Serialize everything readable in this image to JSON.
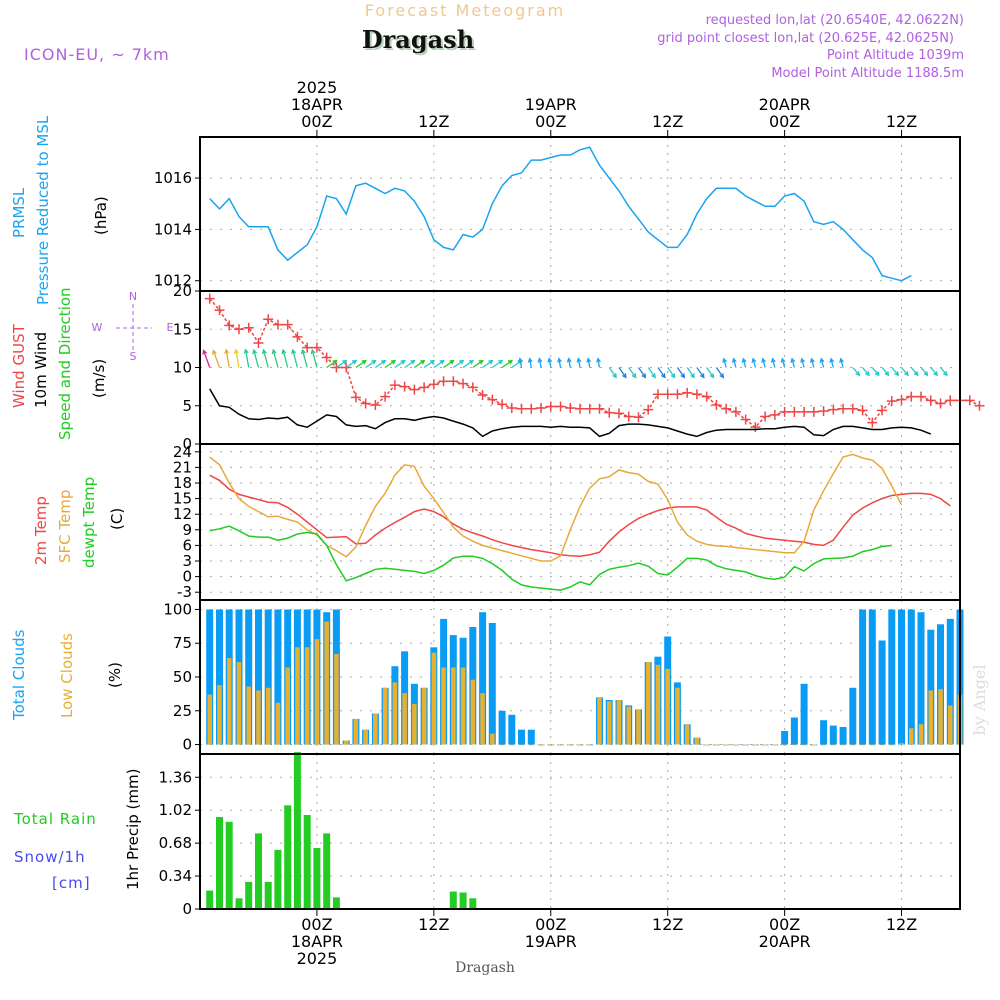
{
  "header": {
    "subtitle": "Forecast Meteogram",
    "location": "Dragash",
    "model": "ICON-EU, ~ 7km",
    "requested": "requested lon,lat (20.6540E, 42.0622N)",
    "grid_point": "grid point closest lon,lat (20.625E, 42.0625N)",
    "point_altitude": "Point Altitude 1039m",
    "model_altitude": "Model Point Altitude 1188.5m",
    "footer_location": "Dragash",
    "watermark": "by Angel"
  },
  "colors": {
    "pressure": "#1aa3f0",
    "gust": "#f04646",
    "wind": "#000000",
    "temp2m": "#f04646",
    "sfc_temp": "#e8a93a",
    "dewpoint": "#22cc22",
    "total_clouds": "#0a9cf5",
    "low_clouds": "#e8b030",
    "rain": "#22cc22",
    "snow": "#4a4af0",
    "label_purple": "#b060e0",
    "subtitle": "#f0c890"
  },
  "chart_data": {
    "type": "meteogram",
    "time_axis": {
      "unit": "hours from 2025-04-18 00Z",
      "range": [
        -12,
        66
      ],
      "top_ticks": [
        {
          "h": 0,
          "lines": [
            "2025",
            "18APR",
            "00Z"
          ]
        },
        {
          "h": 12,
          "lines": [
            "12Z"
          ]
        },
        {
          "h": 24,
          "lines": [
            "19APR",
            "00Z"
          ]
        },
        {
          "h": 36,
          "lines": [
            "12Z"
          ]
        },
        {
          "h": 48,
          "lines": [
            "20APR",
            "00Z"
          ]
        },
        {
          "h": 60,
          "lines": [
            "12Z"
          ]
        }
      ],
      "bottom_ticks": [
        {
          "h": 0,
          "lines": [
            "00Z",
            "18APR",
            "2025"
          ]
        },
        {
          "h": 12,
          "lines": [
            "12Z"
          ]
        },
        {
          "h": 24,
          "lines": [
            "00Z",
            "19APR"
          ]
        },
        {
          "h": 36,
          "lines": [
            "12Z"
          ]
        },
        {
          "h": 48,
          "lines": [
            "00Z",
            "20APR"
          ]
        },
        {
          "h": 60,
          "lines": [
            "12Z"
          ]
        }
      ],
      "hours_start": -11
    },
    "panels": [
      {
        "id": "pressure",
        "type": "line",
        "labels": [
          "PRMSL",
          "Pressure Reduced to MSL",
          "(hPa)"
        ],
        "ylim": [
          1011.6,
          1017.6
        ],
        "yticks": [
          1012,
          1014,
          1016
        ],
        "series": [
          {
            "name": "PRMSL",
            "color_key": "pressure",
            "values": [
              1015.2,
              1014.8,
              1015.2,
              1014.5,
              1014.1,
              1014.1,
              1014.1,
              1013.2,
              1012.8,
              1013.1,
              1013.4,
              1014.1,
              1015.3,
              1015.2,
              1014.6,
              1015.7,
              1015.8,
              1015.6,
              1015.4,
              1015.6,
              1015.5,
              1015.1,
              1014.5,
              1013.6,
              1013.3,
              1013.2,
              1013.8,
              1013.7,
              1014.0,
              1015.0,
              1015.7,
              1016.1,
              1016.2,
              1016.7,
              1016.7,
              1016.8,
              1016.9,
              1016.9,
              1017.1,
              1017.2,
              1016.5,
              1016.0,
              1015.5,
              1014.9,
              1014.4,
              1013.9,
              1013.6,
              1013.3,
              1013.3,
              1013.8,
              1014.6,
              1015.2,
              1015.6,
              1015.6,
              1015.6,
              1015.3,
              1015.1,
              1014.9,
              1014.9,
              1015.3,
              1015.4,
              1015.1,
              1014.3,
              1014.2,
              1014.3,
              1014.0,
              1013.6,
              1013.2,
              1012.9,
              1012.2,
              1012.1,
              1012.0,
              1012.2
            ]
          }
        ]
      },
      {
        "id": "wind",
        "type": "line",
        "labels": [
          "Wind GUST",
          "10m Wind",
          "Speed and Direction",
          "(m/s)"
        ],
        "compass": {
          "N": "N",
          "S": "S",
          "E": "E",
          "W": "W"
        },
        "ylim": [
          0,
          20
        ],
        "yticks": [
          0,
          5,
          10,
          15,
          20
        ],
        "series": [
          {
            "name": "Wind GUST",
            "color_key": "gust",
            "marker": "+",
            "values": [
              19,
              17.5,
              15.5,
              15,
              15.2,
              13.2,
              16.3,
              15.6,
              15.6,
              14,
              12.6,
              12.6,
              11.3,
              10,
              10,
              6.1,
              5.3,
              5.1,
              6.2,
              7.7,
              7.5,
              7.1,
              7.4,
              7.8,
              8.2,
              8.2,
              7.9,
              7.4,
              6.4,
              5.8,
              5.2,
              4.7,
              4.6,
              4.6,
              4.7,
              4.9,
              4.9,
              4.7,
              4.6,
              4.6,
              4.6,
              4.1,
              4.0,
              3.6,
              3.5,
              4.5,
              6.5,
              6.5,
              6.5,
              6.7,
              6.5,
              6.2,
              5.1,
              4.6,
              4.2,
              3.2,
              2.2,
              3.6,
              3.8,
              4.2,
              4.2,
              4.2,
              4.2,
              4.3,
              4.5,
              4.6,
              4.6,
              4.4,
              2.8,
              4.4,
              5.6,
              5.8,
              6.2,
              6.2,
              5.7,
              5.3,
              5.7,
              5.7,
              5.7,
              5.0
            ]
          },
          {
            "name": "10m Wind",
            "color_key": "wind",
            "values": [
              7.2,
              5.0,
              4.8,
              3.9,
              3.3,
              3.2,
              3.4,
              3.3,
              3.5,
              2.5,
              2.2,
              3.0,
              3.8,
              3.6,
              2.5,
              2.3,
              2.4,
              2.0,
              2.8,
              3.3,
              3.3,
              3.1,
              3.4,
              3.6,
              3.4,
              3.0,
              2.6,
              2.1,
              1.0,
              1.7,
              2.0,
              2.2,
              2.3,
              2.3,
              2.3,
              2.2,
              2.3,
              2.2,
              2.2,
              2.1,
              1.0,
              1.4,
              2.4,
              2.6,
              2.6,
              2.5,
              2.3,
              2.1,
              1.7,
              1.3,
              1.0,
              1.5,
              1.8,
              1.9,
              1.9,
              1.9,
              1.9,
              2.0,
              2.0,
              2.2,
              2.3,
              2.2,
              1.2,
              1.1,
              1.9,
              2.3,
              2.3,
              2.1,
              1.9,
              1.9,
              2.1,
              2.2,
              2.1,
              1.8,
              1.3
            ]
          },
          {
            "name": "Wind direction arrows",
            "note": "arrows plotted around 10 m/s, color by speed (magenta/yellow/green early, cyan/blue later)"
          }
        ]
      },
      {
        "id": "temperature",
        "type": "line",
        "labels": [
          "2m Temp",
          "SFC Temp",
          "dewpt Temp",
          "(C)"
        ],
        "ylim": [
          -4.5,
          25.5
        ],
        "yticks": [
          -3,
          0,
          3,
          6,
          9,
          12,
          15,
          18,
          21,
          24
        ],
        "series": [
          {
            "name": "2m Temp",
            "color_key": "temp2m",
            "values": [
              19.5,
              18.5,
              16.8,
              15.8,
              15.3,
              14.8,
              14.3,
              14.2,
              13.3,
              12.0,
              10.5,
              9.0,
              7.5,
              7.6,
              7.7,
              6.3,
              6.4,
              8.0,
              9.3,
              10.4,
              11.4,
              12.5,
              13.0,
              12.5,
              11.5,
              10.1,
              9.1,
              8.4,
              7.8,
              7.1,
              6.5,
              6.0,
              5.6,
              5.2,
              4.9,
              4.6,
              4.2,
              4.0,
              3.9,
              4.2,
              4.7,
              6.8,
              8.6,
              10.0,
              11.2,
              12.0,
              12.7,
              13.2,
              13.4,
              13.4,
              13.4,
              12.8,
              11.4,
              10.1,
              9.3,
              8.3,
              7.8,
              7.4,
              7.2,
              7.0,
              6.8,
              6.6,
              6.2,
              6.0,
              7.0,
              9.5,
              11.8,
              13.2,
              14.2,
              15.0,
              15.6,
              15.8,
              16.0,
              16.0,
              15.8,
              15.0,
              13.6
            ]
          },
          {
            "name": "SFC Temp",
            "color_key": "sfc_temp",
            "values": [
              23.0,
              21.5,
              18.0,
              15.0,
              13.5,
              12.5,
              11.5,
              11.6,
              11.0,
              10.5,
              9.0,
              8.0,
              6.0,
              5.0,
              3.8,
              5.7,
              9.8,
              13.5,
              16.0,
              19.5,
              21.5,
              21.2,
              17.4,
              15.0,
              12.3,
              9.5,
              7.8,
              6.8,
              6.0,
              5.5,
              5.0,
              4.5,
              4.0,
              3.5,
              3.0,
              3.0,
              4.0,
              9.0,
              13.5,
              17.0,
              18.8,
              19.2,
              20.5,
              20.0,
              19.7,
              18.3,
              17.8,
              14.8,
              10.5,
              8.0,
              6.8,
              6.2,
              5.9,
              5.8,
              5.6,
              5.4,
              5.2,
              5.0,
              4.8,
              4.6,
              4.6,
              6.8,
              12.8,
              16.5,
              19.8,
              23.0,
              23.5,
              22.8,
              22.4,
              20.8,
              17.4,
              13.8
            ]
          },
          {
            "name": "dewpt Temp",
            "color_key": "dewpoint",
            "values": [
              8.8,
              9.2,
              9.7,
              8.8,
              7.8,
              7.6,
              7.6,
              7.0,
              7.4,
              8.2,
              8.5,
              8.2,
              6.0,
              2.3,
              -0.8,
              -0.2,
              0.6,
              1.4,
              1.6,
              1.4,
              1.2,
              1.0,
              0.6,
              1.2,
              2.2,
              3.6,
              3.9,
              3.9,
              3.5,
              2.5,
              1.2,
              -0.5,
              -1.6,
              -2.0,
              -2.2,
              -2.4,
              -2.6,
              -2.0,
              -1.0,
              -1.6,
              0.4,
              1.4,
              1.8,
              2.1,
              2.6,
              2.0,
              0.6,
              0.3,
              1.8,
              3.5,
              3.5,
              3.2,
              2.1,
              1.5,
              1.2,
              0.9,
              0.2,
              -0.3,
              -0.5,
              -0.1,
              1.9,
              1.1,
              2.5,
              3.4,
              3.5,
              3.6,
              3.9,
              4.8,
              5.2,
              5.8,
              6.0
            ]
          }
        ]
      },
      {
        "id": "clouds",
        "type": "bar",
        "labels": [
          "Total Clouds",
          "Low Clouds",
          "(%)"
        ],
        "ylim": [
          -7,
          107
        ],
        "yticks": [
          0,
          25,
          50,
          75,
          100
        ],
        "series": [
          {
            "name": "Total Clouds",
            "color_key": "total_clouds",
            "values": [
              100,
              100,
              100,
              100,
              100,
              100,
              100,
              100,
              100,
              100,
              100,
              100,
              98,
              100,
              3,
              19,
              11,
              23,
              42,
              58,
              69,
              45,
              42,
              72,
              93,
              81,
              79,
              87,
              98,
              90,
              25,
              22,
              11,
              11,
              0,
              0,
              0,
              0,
              0,
              0,
              35,
              33,
              33,
              29,
              26,
              61,
              65,
              80,
              46,
              15,
              5,
              0,
              0,
              0,
              0,
              0,
              0,
              0,
              0,
              10,
              20,
              45,
              0,
              18,
              14,
              13,
              42,
              100,
              100,
              77,
              100,
              100,
              100,
              98,
              85,
              89,
              93,
              100
            ]
          },
          {
            "name": "Low Clouds",
            "color_key": "low_clouds",
            "values": [
              37,
              44,
              64,
              61,
              43,
              40,
              42,
              31,
              57,
              72,
              72,
              78,
              91,
              67,
              3,
              19,
              11,
              23,
              42,
              46,
              38,
              30,
              42,
              68,
              57,
              57,
              57,
              48,
              38,
              8,
              0,
              0,
              0,
              0,
              0,
              0,
              0,
              0,
              0,
              0,
              35,
              32,
              33,
              28,
              26,
              61,
              59,
              56,
              42,
              15,
              5,
              0,
              0,
              0,
              0,
              0,
              0,
              0,
              0,
              0,
              0,
              0,
              0,
              0,
              0,
              0,
              0,
              0,
              0,
              0,
              0,
              1,
              12,
              15,
              40,
              41,
              29,
              37
            ]
          }
        ]
      },
      {
        "id": "precip",
        "type": "bar",
        "labels": [
          "1hr Precip (mm)"
        ],
        "legend": [
          "Total Rain",
          "Snow/1h",
          "[cm]"
        ],
        "ylim": [
          0,
          1.6
        ],
        "yticks": [
          0,
          0.34,
          0.68,
          1.02,
          1.36
        ],
        "ytick_labels": [
          "0",
          "0.34",
          "0.68",
          "1.02",
          "1.36"
        ],
        "series": [
          {
            "name": "Total Rain",
            "color_key": "rain",
            "values": [
              0.19,
              0.95,
              0.9,
              0.11,
              0.28,
              0.78,
              0.28,
              0.61,
              1.07,
              1.62,
              0.97,
              0.63,
              0.78,
              0.12,
              0,
              0,
              0,
              0,
              0,
              0,
              0,
              0,
              0,
              0,
              0,
              0.18,
              0.17,
              0.11,
              0,
              0
            ]
          }
        ]
      }
    ]
  }
}
